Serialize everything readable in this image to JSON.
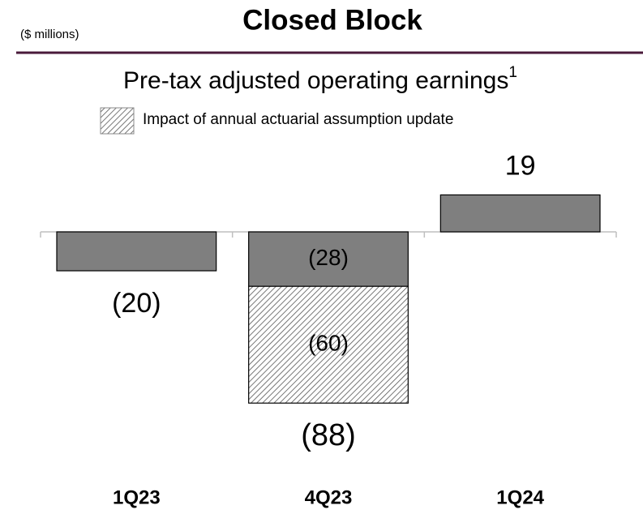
{
  "chart_data": {
    "type": "stacked_bar",
    "unit_note": "($ millions)",
    "title": "Closed Block",
    "subtitle": "Pre-tax adjusted operating earnings",
    "subtitle_footnote": "1",
    "categories": [
      "1Q23",
      "4Q23",
      "1Q24"
    ],
    "series": [
      {
        "color": "#7f7f7f",
        "values": [
          -20,
          -28,
          19
        ],
        "value_labels": [
          "(20)",
          "(28)",
          "19"
        ]
      },
      {
        "name": "Impact of annual actuarial assumption update",
        "color": "#7f7f7f",
        "pattern": "hatch",
        "values": [
          null,
          -60,
          null
        ],
        "value_labels": [
          null,
          "(60)",
          null
        ]
      }
    ],
    "totals": {
      "values": [
        null,
        -88,
        null
      ],
      "value_labels": [
        null,
        "(88)",
        null
      ]
    }
  }
}
